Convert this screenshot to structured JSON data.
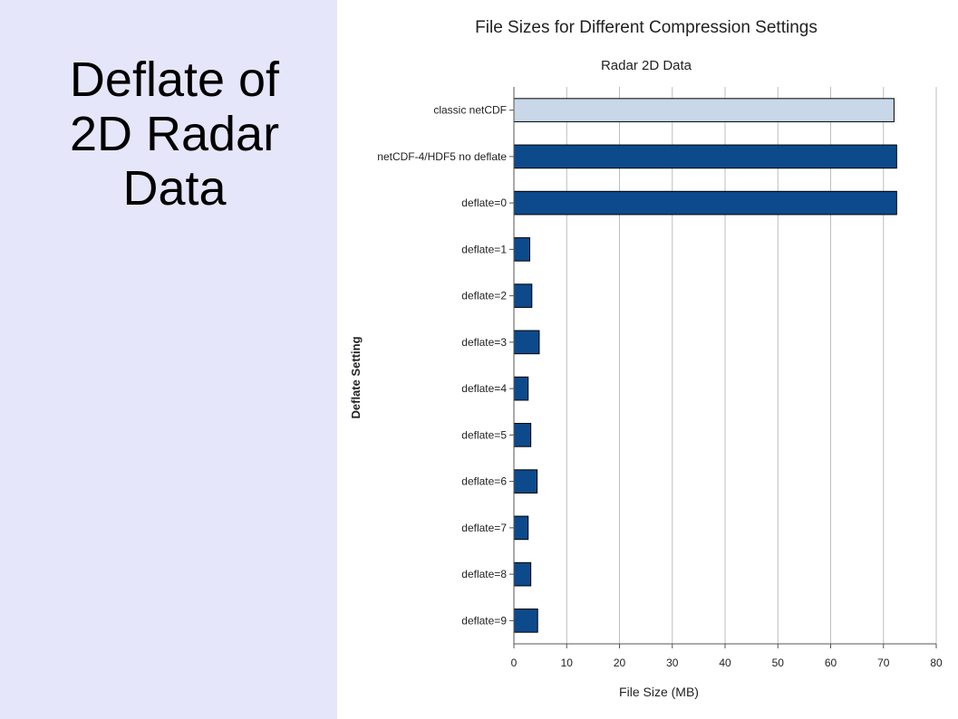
{
  "slide": {
    "title_lines": [
      "Deflate of",
      "2D Radar",
      "Data"
    ],
    "panel_color": "#e6e6fa"
  },
  "chart_data": {
    "type": "bar",
    "orientation": "horizontal",
    "title": "File Sizes for Different Compression Settings",
    "subtitle": "Radar 2D Data",
    "xlabel": "File Size (MB)",
    "ylabel": "Deflate Setting",
    "xlim": [
      0,
      80
    ],
    "xticks": [
      0,
      10,
      20,
      30,
      40,
      50,
      60,
      70,
      80
    ],
    "grid": "vertical",
    "categories": [
      "classic netCDF",
      "netCDF-4/HDF5 no deflate",
      "deflate=0",
      "deflate=1",
      "deflate=2",
      "deflate=3",
      "deflate=4",
      "deflate=5",
      "deflate=6",
      "deflate=7",
      "deflate=8",
      "deflate=9"
    ],
    "values": [
      72,
      72.5,
      72.5,
      3,
      3.4,
      4.8,
      2.7,
      3.2,
      4.4,
      2.7,
      3.2,
      4.5
    ],
    "bar_colors": [
      "#c8d8e8",
      "#0d4a8c",
      "#0d4a8c",
      "#0d4a8c",
      "#0d4a8c",
      "#0d4a8c",
      "#0d4a8c",
      "#0d4a8c",
      "#0d4a8c",
      "#0d4a8c",
      "#0d4a8c",
      "#0d4a8c"
    ]
  }
}
